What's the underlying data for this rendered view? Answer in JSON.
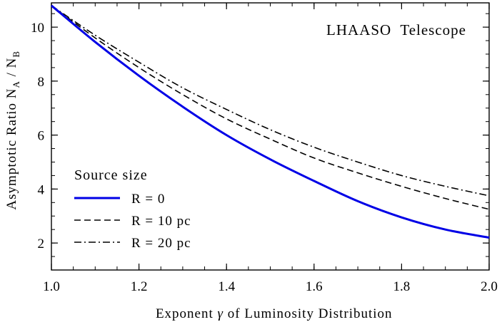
{
  "chart_data": {
    "type": "line",
    "title": "",
    "annotation": "LHAASO  Telescope",
    "xlabel_parts": [
      "Exponent ",
      "γ",
      " of Luminosity Distribution"
    ],
    "ylabel_parts": [
      "Asymptotic Ratio N",
      "A",
      " / N",
      "B"
    ],
    "xlim": [
      1.0,
      2.0
    ],
    "ylim": [
      1.0,
      10.9
    ],
    "x_ticks": [
      1.0,
      1.2,
      1.4,
      1.6,
      1.8,
      2.0
    ],
    "x_tick_labels": [
      "1.0",
      "1.2",
      "1.4",
      "1.6",
      "1.8",
      "2.0"
    ],
    "y_ticks": [
      2,
      4,
      6,
      8,
      10
    ],
    "y_tick_labels": [
      "2",
      "4",
      "6",
      "8",
      "10"
    ],
    "legend_title": "Source size",
    "legend_location": "lower-left",
    "series": [
      {
        "name": "R = 0",
        "color": "#0000e6",
        "dash": "solid",
        "x": [
          1.0,
          1.1,
          1.2,
          1.3,
          1.4,
          1.5,
          1.6,
          1.7,
          1.8,
          1.9,
          2.0
        ],
        "y": [
          10.8,
          9.45,
          8.2,
          7.05,
          6.0,
          5.1,
          4.3,
          3.55,
          2.95,
          2.5,
          2.2
        ]
      },
      {
        "name": "R = 10 pc",
        "color": "#000000",
        "dash": "dashed",
        "x": [
          1.0,
          1.1,
          1.2,
          1.3,
          1.4,
          1.5,
          1.6,
          1.7,
          1.8,
          1.9,
          2.0
        ],
        "y": [
          10.8,
          9.6,
          8.5,
          7.5,
          6.6,
          5.85,
          5.15,
          4.6,
          4.1,
          3.65,
          3.25
        ]
      },
      {
        "name": "R = 20 pc",
        "color": "#000000",
        "dash": "dashdot",
        "x": [
          1.0,
          1.1,
          1.2,
          1.3,
          1.4,
          1.5,
          1.6,
          1.7,
          1.8,
          1.9,
          2.0
        ],
        "y": [
          10.8,
          9.7,
          8.7,
          7.75,
          6.95,
          6.2,
          5.55,
          5.0,
          4.5,
          4.1,
          3.75
        ]
      }
    ]
  }
}
